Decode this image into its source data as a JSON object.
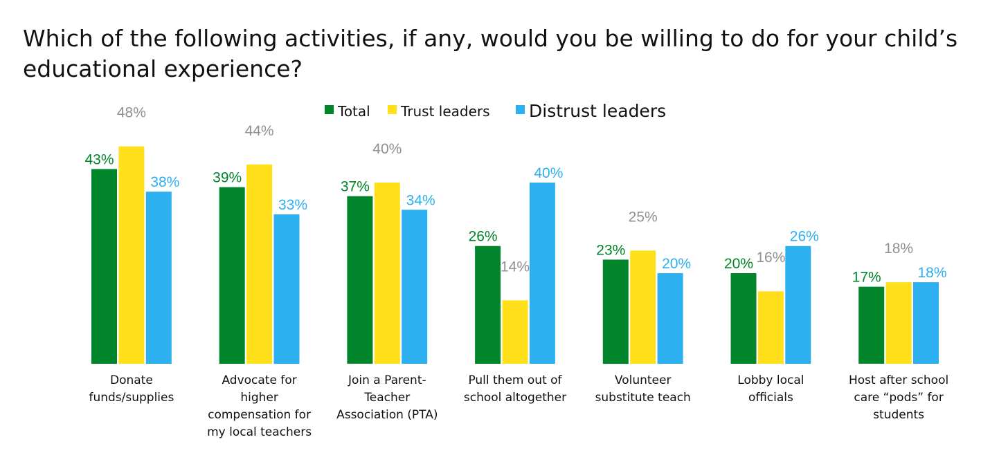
{
  "chart_data": {
    "type": "bar",
    "title": "Which of the following activities, if any, would you be willing to do for your child’s educational experience?",
    "categories": [
      "Donate funds/supplies",
      "Advocate for higher compensation for my local teachers",
      "Join a Parent-Teacher Association (PTA)",
      "Pull them out of school altogether",
      "Volunteer substitute teach",
      "Lobby local officials",
      "Host after school care “pods” for students"
    ],
    "category_lines": [
      [
        "Donate",
        "funds/supplies"
      ],
      [
        "Advocate for",
        "higher",
        "compensation for",
        "my local teachers"
      ],
      [
        "Join a Parent-",
        "Teacher",
        "Association (PTA)"
      ],
      [
        "Pull them out of",
        "school altogether"
      ],
      [
        "Volunteer",
        "substitute teach"
      ],
      [
        "Lobby local",
        "officials"
      ],
      [
        "Host after school",
        "care “pods” for",
        "students"
      ]
    ],
    "series": [
      {
        "name": "Total",
        "values": [
          43,
          39,
          37,
          26,
          23,
          20,
          17
        ],
        "labels": [
          "43%",
          "39%",
          "37%",
          "26%",
          "23%",
          "20%",
          "17%"
        ]
      },
      {
        "name": "Trust leaders",
        "values": [
          48,
          44,
          40,
          14,
          25,
          16,
          18
        ],
        "labels": [
          "48%",
          "44%",
          "40%",
          "14%",
          "25%",
          "16%",
          "18%"
        ]
      },
      {
        "name": "Distrust leaders",
        "values": [
          38,
          33,
          34,
          40,
          20,
          26,
          18
        ],
        "labels": [
          "38%",
          "33%",
          "34%",
          "40%",
          "20%",
          "26%",
          "18%"
        ]
      }
    ],
    "colors": {
      "Total": "#00852a",
      "Trust leaders": "#ffe01b",
      "Distrust leaders": "#2db0ef"
    },
    "label_colors": {
      "Total": "#00852a",
      "Trust leaders": "#909090",
      "Distrust leaders": "#2db0ef"
    },
    "ylim": [
      0,
      60
    ],
    "grid": false,
    "legend_position": "top-center",
    "xlabel": "",
    "ylabel": ""
  }
}
